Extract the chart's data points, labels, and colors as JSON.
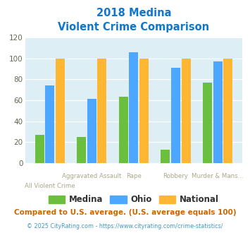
{
  "title_line1": "2018 Medina",
  "title_line2": "Violent Crime Comparison",
  "top_labels": [
    "",
    "Aggravated Assault",
    "Rape",
    "Robbery",
    "Murder & Mans..."
  ],
  "bot_labels": [
    "All Violent Crime",
    "",
    "",
    "",
    ""
  ],
  "medina": [
    27,
    25,
    63,
    13,
    77
  ],
  "ohio": [
    74,
    61,
    106,
    91,
    97
  ],
  "national": [
    100,
    100,
    100,
    100,
    100
  ],
  "color_medina": "#6abf3e",
  "color_ohio": "#4da6ff",
  "color_national": "#ffb733",
  "ylim": [
    0,
    120
  ],
  "yticks": [
    0,
    20,
    40,
    60,
    80,
    100,
    120
  ],
  "bg_color": "#ddeef5",
  "footnote1": "Compared to U.S. average. (U.S. average equals 100)",
  "footnote2": "© 2025 CityRating.com - https://www.cityrating.com/crime-statistics/",
  "footnote1_color": "#cc6600",
  "footnote2_color": "#4499bb",
  "title_color": "#1177cc",
  "label_color": "#aaa888",
  "bar_width": 0.22,
  "bar_gap": 0.025
}
